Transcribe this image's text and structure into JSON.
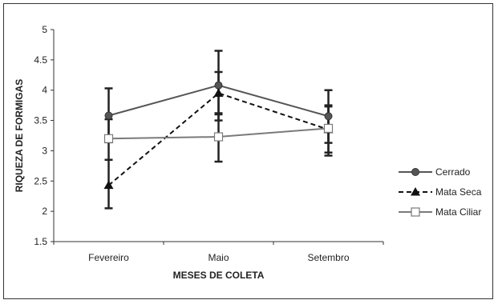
{
  "chart_data": {
    "type": "line",
    "title": "",
    "xlabel": "MESES DE COLETA",
    "ylabel": "RIQUEZA DE FORMIGAS",
    "categories": [
      "Fevereiro",
      "Maio",
      "Setembro"
    ],
    "ylim": [
      1.5,
      5
    ],
    "yticks": [
      "1.5",
      "2",
      "2.5",
      "3",
      "3.5",
      "4",
      "4.5",
      "5"
    ],
    "grid": false,
    "legend_position": "right",
    "series": [
      {
        "name": "Cerrado",
        "values": [
          3.58,
          4.08,
          3.57
        ],
        "err_low": [
          3.14,
          3.5,
          3.13
        ],
        "err_high": [
          4.03,
          4.65,
          4.0
        ],
        "marker": "circle",
        "line_style": "solid",
        "color": "#555555"
      },
      {
        "name": "Mata Seca",
        "values": [
          2.43,
          3.95,
          3.35
        ],
        "err_low": [
          2.05,
          3.6,
          2.92
        ],
        "err_high": [
          2.85,
          4.3,
          3.75
        ],
        "marker": "triangle",
        "line_style": "dashed",
        "color": "#111111"
      },
      {
        "name": "Mata Ciliar",
        "values": [
          3.2,
          3.23,
          3.37
        ],
        "err_low": [
          2.85,
          2.82,
          2.97
        ],
        "err_high": [
          3.52,
          3.62,
          3.73
        ],
        "marker": "square",
        "line_style": "solid",
        "color": "#7a7a7a"
      }
    ]
  }
}
